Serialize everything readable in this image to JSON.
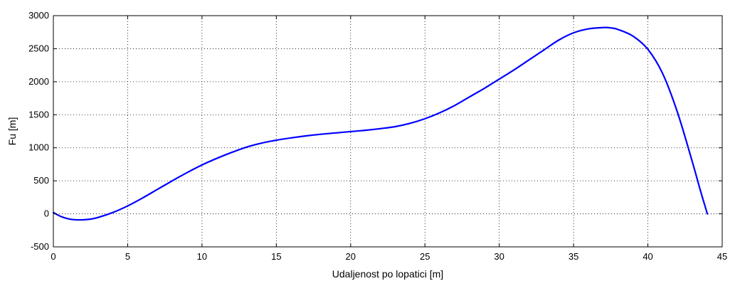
{
  "chart_data": {
    "type": "line",
    "title": "",
    "xlabel": "Udaljenost po lopatici [m]",
    "ylabel": "Fu [m]",
    "xlim": [
      0,
      45
    ],
    "ylim": [
      -500,
      3000
    ],
    "xticks": [
      0,
      5,
      10,
      15,
      20,
      25,
      30,
      35,
      40,
      45
    ],
    "yticks": [
      -500,
      0,
      500,
      1000,
      1500,
      2000,
      2500,
      3000
    ],
    "grid": true,
    "grid_style": "dotted",
    "legend": "none",
    "series": [
      {
        "color": "#0000ff",
        "x": [
          0,
          0.5,
          1,
          1.5,
          2,
          2.5,
          3,
          4,
          5,
          6,
          7,
          8,
          9,
          10,
          11,
          12,
          13,
          14,
          15,
          16,
          17,
          18,
          19,
          20,
          21,
          22,
          23,
          24,
          25,
          26,
          27,
          28,
          29,
          30,
          31,
          32,
          33,
          34,
          35,
          36,
          37,
          37.5,
          38,
          39,
          40,
          41,
          42,
          43,
          43.5,
          44
        ],
        "y": [
          20,
          -40,
          -75,
          -90,
          -90,
          -80,
          -55,
          20,
          120,
          240,
          370,
          500,
          625,
          740,
          840,
          930,
          1010,
          1070,
          1115,
          1150,
          1180,
          1205,
          1225,
          1245,
          1265,
          1290,
          1320,
          1370,
          1440,
          1530,
          1640,
          1770,
          1900,
          2040,
          2180,
          2330,
          2480,
          2630,
          2740,
          2800,
          2820,
          2815,
          2790,
          2690,
          2490,
          2120,
          1530,
          780,
          380,
          0
        ]
      }
    ]
  }
}
